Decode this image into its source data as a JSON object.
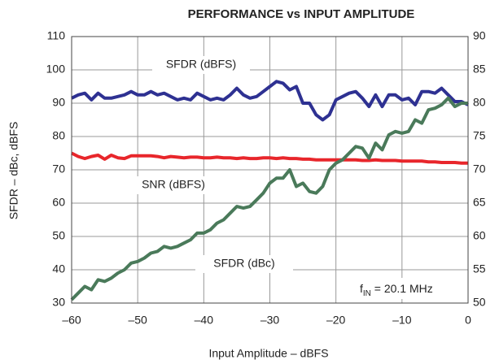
{
  "chart_data": {
    "type": "line",
    "title": "PERFORMANCE vs INPUT AMPLITUDE",
    "xlabel": "Input Amplitude – dBFS",
    "ylabel": "SFDR – dBc, dBFS",
    "annotations": [
      "SFDR (dBFS)",
      "SNR (dBFS)",
      "SFDR (dBc)"
    ],
    "fin_annotation": [
      "f",
      "IN",
      " = 20.1 MHz"
    ],
    "x": [
      -60,
      -59,
      -58,
      -57,
      -56,
      -55,
      -54,
      -53,
      -52,
      -51,
      -50,
      -49,
      -48,
      -47,
      -46,
      -45,
      -44,
      -43,
      -42,
      -41,
      -40,
      -39,
      -38,
      -37,
      -36,
      -35,
      -34,
      -33,
      -32,
      -31,
      -30,
      -29,
      -28,
      -27,
      -26,
      -25,
      -24,
      -23,
      -22,
      -21,
      -20,
      -19,
      -18,
      -17,
      -16,
      -15,
      -14,
      -13,
      -12,
      -11,
      -10,
      -9,
      -8,
      -7,
      -6,
      -5,
      -4,
      -3,
      -2,
      -1,
      0
    ],
    "series": [
      {
        "name": "SFDR (dBFS)",
        "color": "#2e3192",
        "axis": "y",
        "values": [
          91.5,
          92.5,
          93,
          91,
          93,
          91.5,
          91.5,
          92,
          92.5,
          93.5,
          92.5,
          92.5,
          93.5,
          92.5,
          93,
          92,
          91,
          91.5,
          91,
          93,
          92,
          91,
          91.5,
          91,
          92.5,
          94.5,
          92.5,
          91.5,
          92,
          93.5,
          95,
          96.5,
          96,
          94,
          95,
          90,
          90,
          86.5,
          85,
          86.5,
          91,
          92,
          93,
          93.5,
          91.5,
          89,
          92.5,
          89,
          92.5,
          92.5,
          91,
          91.5,
          89.5,
          93.5,
          93.5,
          93,
          94.5,
          92.5,
          90.5,
          90.5,
          89.5
        ]
      },
      {
        "name": "SNR (dBFS)",
        "color": "#e8262b",
        "axis": "y2",
        "values": [
          72.5,
          72,
          71.7,
          72,
          72.2,
          71.6,
          72.2,
          71.8,
          71.7,
          72.1,
          72.1,
          72.1,
          72.1,
          72,
          71.8,
          72,
          71.9,
          71.8,
          71.9,
          71.9,
          71.8,
          71.8,
          71.9,
          71.8,
          71.8,
          71.7,
          71.8,
          71.7,
          71.7,
          71.8,
          71.8,
          71.7,
          71.8,
          71.7,
          71.7,
          71.6,
          71.6,
          71.5,
          71.5,
          71.5,
          71.5,
          71.5,
          71.5,
          71.5,
          71.4,
          71.4,
          71.5,
          71.4,
          71.4,
          71.4,
          71.3,
          71.3,
          71.3,
          71.3,
          71.2,
          71.2,
          71.1,
          71.1,
          71.1,
          71.0,
          71.0
        ]
      },
      {
        "name": "SFDR (dBc)",
        "color": "#4a7a5a",
        "axis": "y",
        "values": [
          31,
          33,
          35,
          34,
          37,
          36.5,
          37.5,
          39,
          40,
          42,
          42.5,
          43.5,
          45,
          45.5,
          47,
          46.5,
          47,
          48,
          49,
          51,
          51,
          52,
          54,
          55,
          57,
          59,
          58.5,
          59,
          61,
          63,
          66,
          67.5,
          67.5,
          70,
          65,
          66,
          63.5,
          63,
          65,
          70,
          72,
          73,
          75,
          77,
          76.5,
          73.5,
          78,
          76,
          80.5,
          81.5,
          81,
          81.5,
          85,
          84,
          88,
          88.5,
          89.5,
          91.5,
          89,
          90,
          90
        ]
      }
    ],
    "xlim": [
      -60,
      0
    ],
    "xticks": [
      {
        "value": -60,
        "label": "–60"
      },
      {
        "value": -50,
        "label": "–50"
      },
      {
        "value": -40,
        "label": "–40"
      },
      {
        "value": -30,
        "label": "–30"
      },
      {
        "value": -20,
        "label": "–20"
      },
      {
        "value": -10,
        "label": "–10"
      },
      0
    ],
    "ylim": [
      30,
      110
    ],
    "yticks": [
      30,
      40,
      50,
      60,
      70,
      80,
      90,
      100,
      110
    ],
    "y2lim": [
      50,
      90
    ],
    "y2ticks": [
      50,
      55,
      60,
      65,
      70,
      75,
      80,
      85,
      90
    ],
    "grid": true
  }
}
